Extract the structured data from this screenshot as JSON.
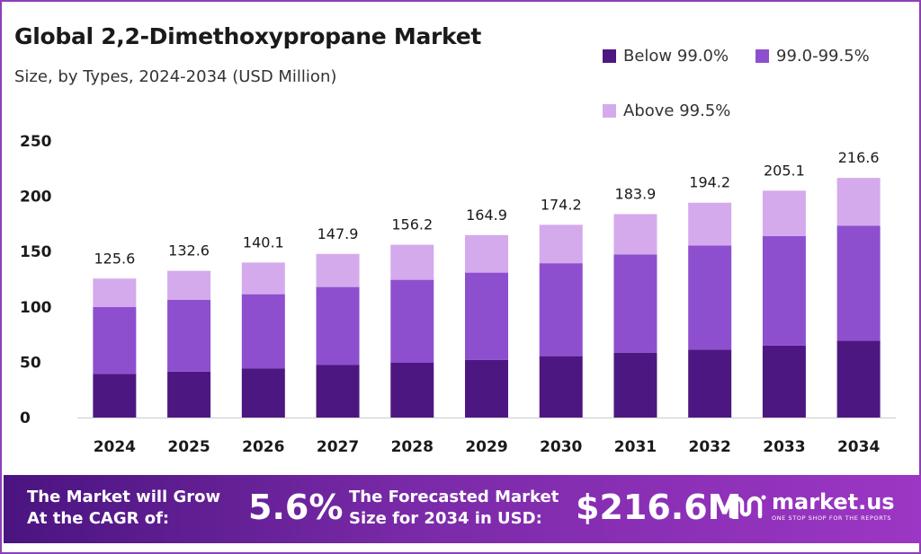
{
  "chart_data": {
    "type": "bar",
    "stacked": true,
    "title": "Global 2,2-Dimethoxypropane Market",
    "subtitle": "Size, by Types, 2024-2034 (USD Million)",
    "categories": [
      "2024",
      "2025",
      "2026",
      "2027",
      "2028",
      "2029",
      "2030",
      "2031",
      "2032",
      "2033",
      "2034"
    ],
    "series": [
      {
        "name": "Below 99.0%",
        "color": "#4d1782",
        "values": [
          39.5,
          41.5,
          44.5,
          47.5,
          49.5,
          52.0,
          55.5,
          58.5,
          61.5,
          65.0,
          69.5
        ]
      },
      {
        "name": "99.0-99.5%",
        "color": "#8e4fcf",
        "values": [
          60.5,
          65.0,
          67.0,
          70.5,
          75.0,
          79.0,
          84.0,
          89.0,
          94.0,
          99.0,
          104.0
        ]
      },
      {
        "name": "Above 99.5%",
        "color": "#d4aaed",
        "values": [
          25.6,
          26.1,
          28.6,
          29.9,
          31.7,
          33.9,
          34.7,
          36.4,
          38.7,
          41.1,
          43.1
        ]
      }
    ],
    "totals": [
      125.6,
      132.6,
      140.1,
      147.9,
      156.2,
      164.9,
      174.2,
      183.9,
      194.2,
      205.1,
      216.6
    ],
    "yticks": [
      0,
      50,
      100,
      150,
      200,
      250
    ],
    "ylim": [
      0,
      250
    ],
    "grid": false,
    "legend_position": "top-right"
  },
  "footer": {
    "cagr_text_line1": "The Market will Grow",
    "cagr_text_line2": "At the CAGR of:",
    "cagr_value": "5.6%",
    "forecast_text_line1": "The Forecasted Market",
    "forecast_text_line2": "Size for 2034 in USD:",
    "forecast_value": "$216.6M",
    "brand_name": "market.us",
    "brand_tagline": "ONE STOP SHOP FOR THE REPORTS",
    "brand_icon": "market-us-logo-icon"
  }
}
